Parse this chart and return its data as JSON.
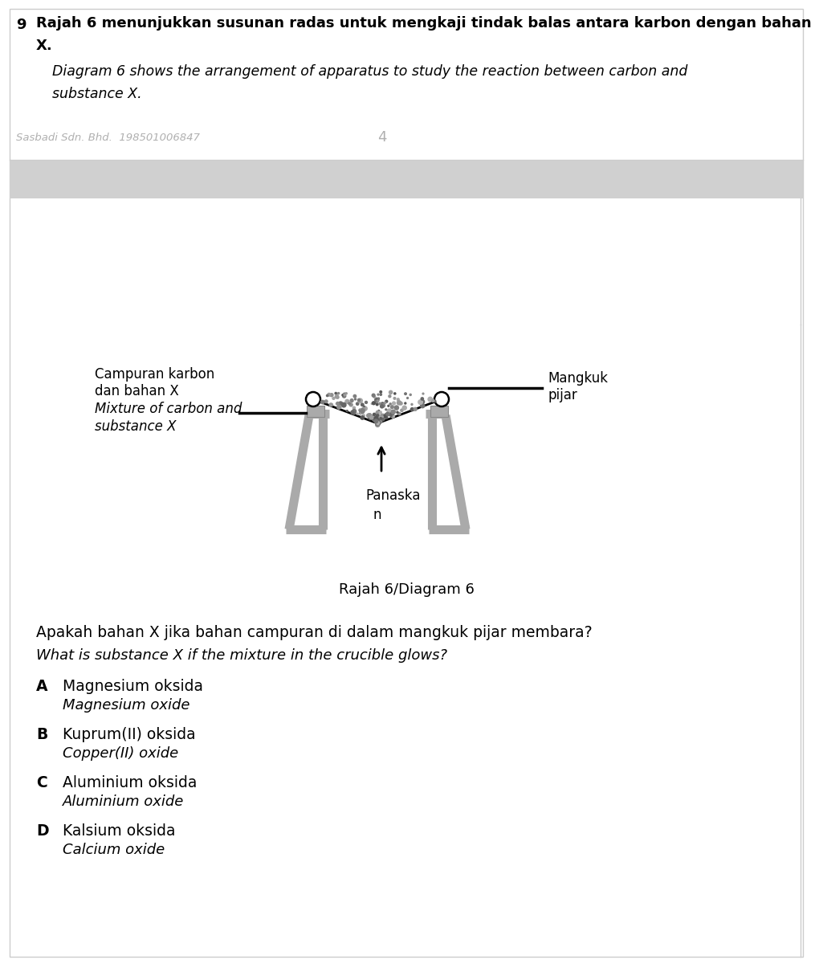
{
  "bg_color": "#ffffff",
  "page_number": "9",
  "header_bold": "Rajah 6 menunjukkan susunan radas untuk mengkaji tindak balas antara karbon dengan bahan X.",
  "header_italic_line1": "Diagram 6 shows the arrangement of apparatus to study the reaction between carbon and",
  "header_italic_line2": "substance X.",
  "watermark_text": "Sasbadi Sdn. Bhd.  198501006847",
  "watermark_number": "4",
  "diagram_label": "Rajah 6/Diagram 6",
  "label_left_line1": "Campuran karbon",
  "label_left_line2": "dan bahan X",
  "label_left_line3": "Mixture of carbon and",
  "label_left_line4": "substance X",
  "label_right_line1": "Mangkuk",
  "label_right_line2": "pijar",
  "label_heat_line1": "Panaska",
  "label_heat_line2": "n",
  "question_line1": "Apakah bahan X jika bahan campuran di dalam mangkuk pijar membara?",
  "question_line2": "What is substance X if the mixture in the crucible glows?",
  "opt_A_bold": "A",
  "opt_A_text": "Magnesium oksida",
  "opt_A_italic": "Magnesium oxide",
  "opt_B_bold": "B",
  "opt_B_text": "Kuprum(II) oksida",
  "opt_B_italic": "Copper(II) oxide",
  "opt_C_bold": "C",
  "opt_C_text": "Aluminium oksida",
  "opt_C_italic": "Aluminium oxide",
  "opt_D_bold": "D",
  "opt_D_text": "Kalsium oksida",
  "opt_D_italic": "Calcium oxide",
  "gray_color": "#b0b0b0",
  "separator_color": "#d0d0d0",
  "black": "#000000",
  "tripod_color": "#aaaaaa",
  "tripod_edge": "#888888"
}
